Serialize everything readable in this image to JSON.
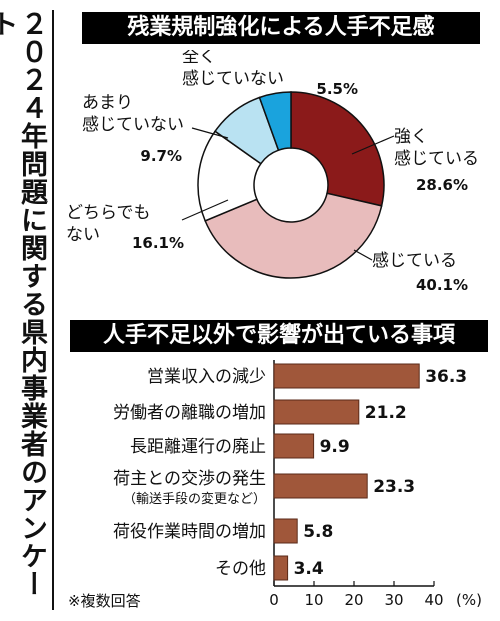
{
  "side_title": "２０２４年問題に関する県内事業者のアンケート",
  "footnote": "※複数回答",
  "chart_data": [
    {
      "type": "pie",
      "title": "残業規制強化による人手不足感",
      "slices": [
        {
          "label_lines": [
            "強く",
            "感じている"
          ],
          "value": 28.6,
          "value_text": "28.6%",
          "color": "#8b1a1a"
        },
        {
          "label_lines": [
            "感じている"
          ],
          "value": 40.1,
          "value_text": "40.1%",
          "color": "#e8bcbc"
        },
        {
          "label_lines": [
            "どちらでも",
            "ない"
          ],
          "value": 16.1,
          "value_text": "16.1%",
          "color": "#ffffff"
        },
        {
          "label_lines": [
            "あまり",
            "感じていない"
          ],
          "value": 9.7,
          "value_text": "9.7%",
          "color": "#b9e2f2"
        },
        {
          "label_lines": [
            "全く",
            "感じていない"
          ],
          "value": 5.5,
          "value_text": "5.5%",
          "color": "#1aa3dd"
        }
      ]
    },
    {
      "type": "bar",
      "orientation": "horizontal",
      "title": "人手不足以外で影響が出ている事項",
      "categories": [
        "営業収入の減少",
        "労働者の離職の増加",
        "長距離運行の廃止",
        "荷主との交渉の発生",
        "荷役作業時間の増加",
        "その他"
      ],
      "category_notes": [
        "",
        "",
        "",
        "（輸送手段の変更など）",
        "",
        ""
      ],
      "values": [
        36.3,
        21.2,
        9.9,
        23.3,
        5.8,
        3.4
      ],
      "value_labels": [
        "36.3",
        "21.2",
        "9.9",
        "23.3",
        "5.8",
        "3.4"
      ],
      "xlim": [
        0,
        40
      ],
      "xticks": [
        "0",
        "10",
        "20",
        "30",
        "40"
      ],
      "xunit": "(%)",
      "bar_color": "#a0573a",
      "grid": false
    }
  ]
}
